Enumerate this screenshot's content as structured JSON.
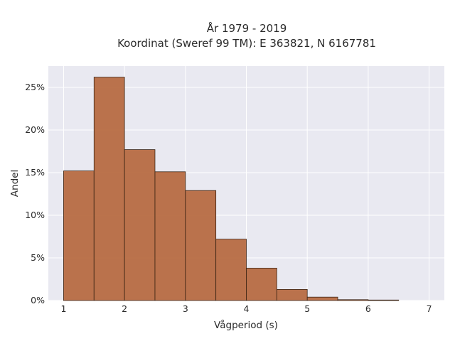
{
  "chart_data": {
    "type": "bar",
    "title_line1": "År 1979 - 2019",
    "title_line2": "Koordinat (Sweref 99 TM): E 363821, N 6167781",
    "xlabel": "Vågperiod (s)",
    "ylabel": "Andel",
    "xlim": [
      0.75,
      7.25
    ],
    "ylim": [
      0,
      0.275
    ],
    "x_ticks": [
      1,
      2,
      3,
      4,
      5,
      6,
      7
    ],
    "y_ticks": [
      0,
      0.05,
      0.1,
      0.15,
      0.2,
      0.25
    ],
    "y_tick_labels": [
      "0%",
      "5%",
      "10%",
      "15%",
      "20%",
      "25%"
    ],
    "bin_edges": [
      1,
      1.5,
      2,
      2.5,
      3,
      3.5,
      4,
      4.5,
      5,
      5.5,
      6,
      6.5
    ],
    "values": [
      0.152,
      0.262,
      0.177,
      0.151,
      0.129,
      0.072,
      0.038,
      0.013,
      0.004,
      0.001,
      0.0006
    ],
    "bar_color": "#b5653a",
    "bar_edge_color": "#3b2414",
    "grid": true,
    "background": "#e9e9f1"
  }
}
